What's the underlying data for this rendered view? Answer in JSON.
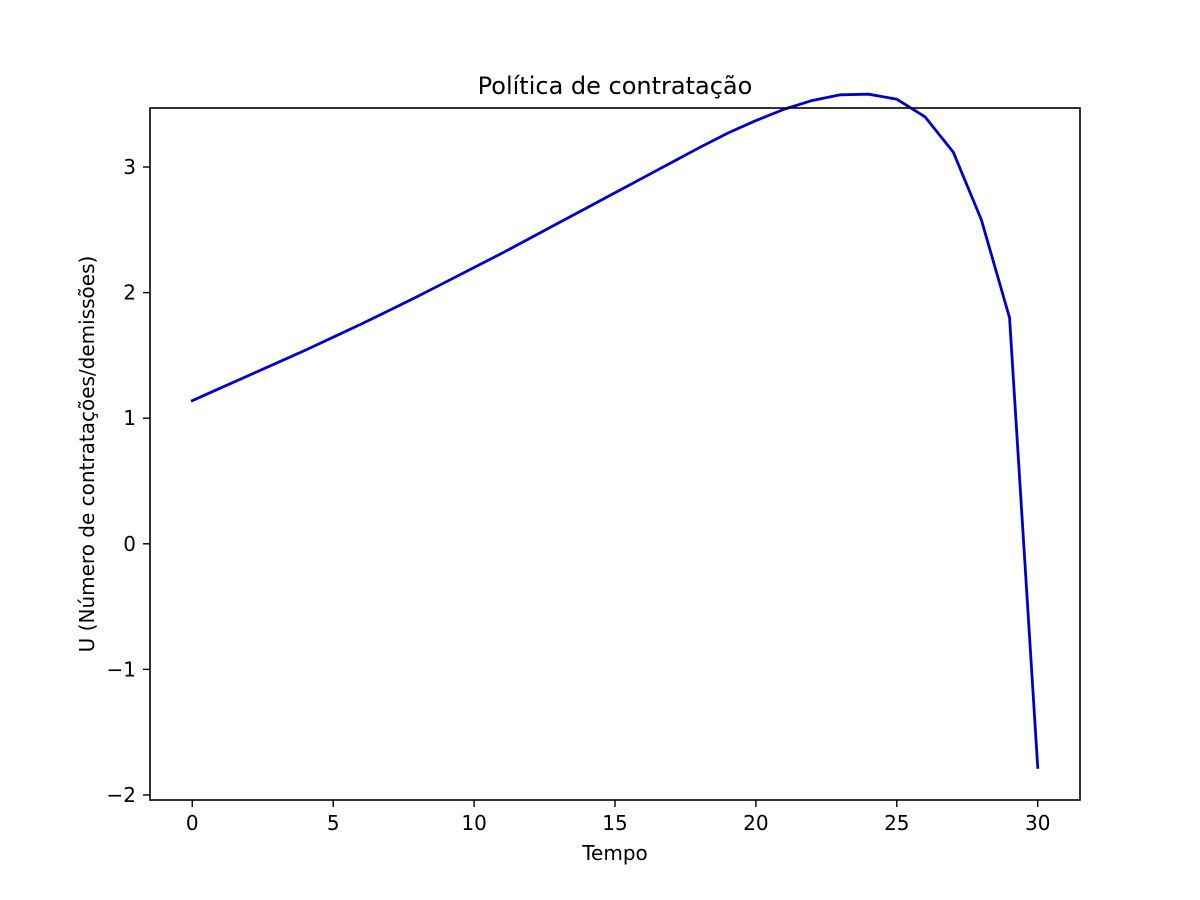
{
  "chart_data": {
    "type": "line",
    "title": "Política de contratação",
    "xlabel": "Tempo",
    "ylabel": "U (Número de contratações/demissões)",
    "xlim": [
      -1.5,
      31.5
    ],
    "ylim": [
      -2.04,
      3.47
    ],
    "xticks": [
      0,
      5,
      10,
      15,
      20,
      25,
      30
    ],
    "xtick_labels": [
      "0",
      "5",
      "10",
      "15",
      "20",
      "25",
      "30"
    ],
    "yticks": [
      -2,
      -1,
      0,
      1,
      2,
      3
    ],
    "ytick_labels": [
      "−2",
      "−1",
      "0",
      "1",
      "2",
      "3"
    ],
    "grid": false,
    "series": [
      {
        "color": "#0000cc",
        "x": [
          0,
          1,
          2,
          3,
          4,
          5,
          6,
          7,
          8,
          9,
          10,
          11,
          12,
          13,
          14,
          15,
          16,
          17,
          18,
          19,
          20,
          21,
          22,
          23,
          24,
          25,
          26,
          27,
          28,
          29,
          30
        ],
        "y": [
          1.14,
          1.24,
          1.34,
          1.44,
          1.54,
          1.645,
          1.75,
          1.86,
          1.97,
          2.085,
          2.2,
          2.315,
          2.435,
          2.555,
          2.675,
          2.795,
          2.915,
          3.035,
          3.155,
          3.27,
          3.37,
          3.46,
          3.53,
          3.575,
          3.58,
          3.54,
          3.4,
          3.12,
          2.58,
          1.8,
          -1.78
        ]
      }
    ]
  }
}
